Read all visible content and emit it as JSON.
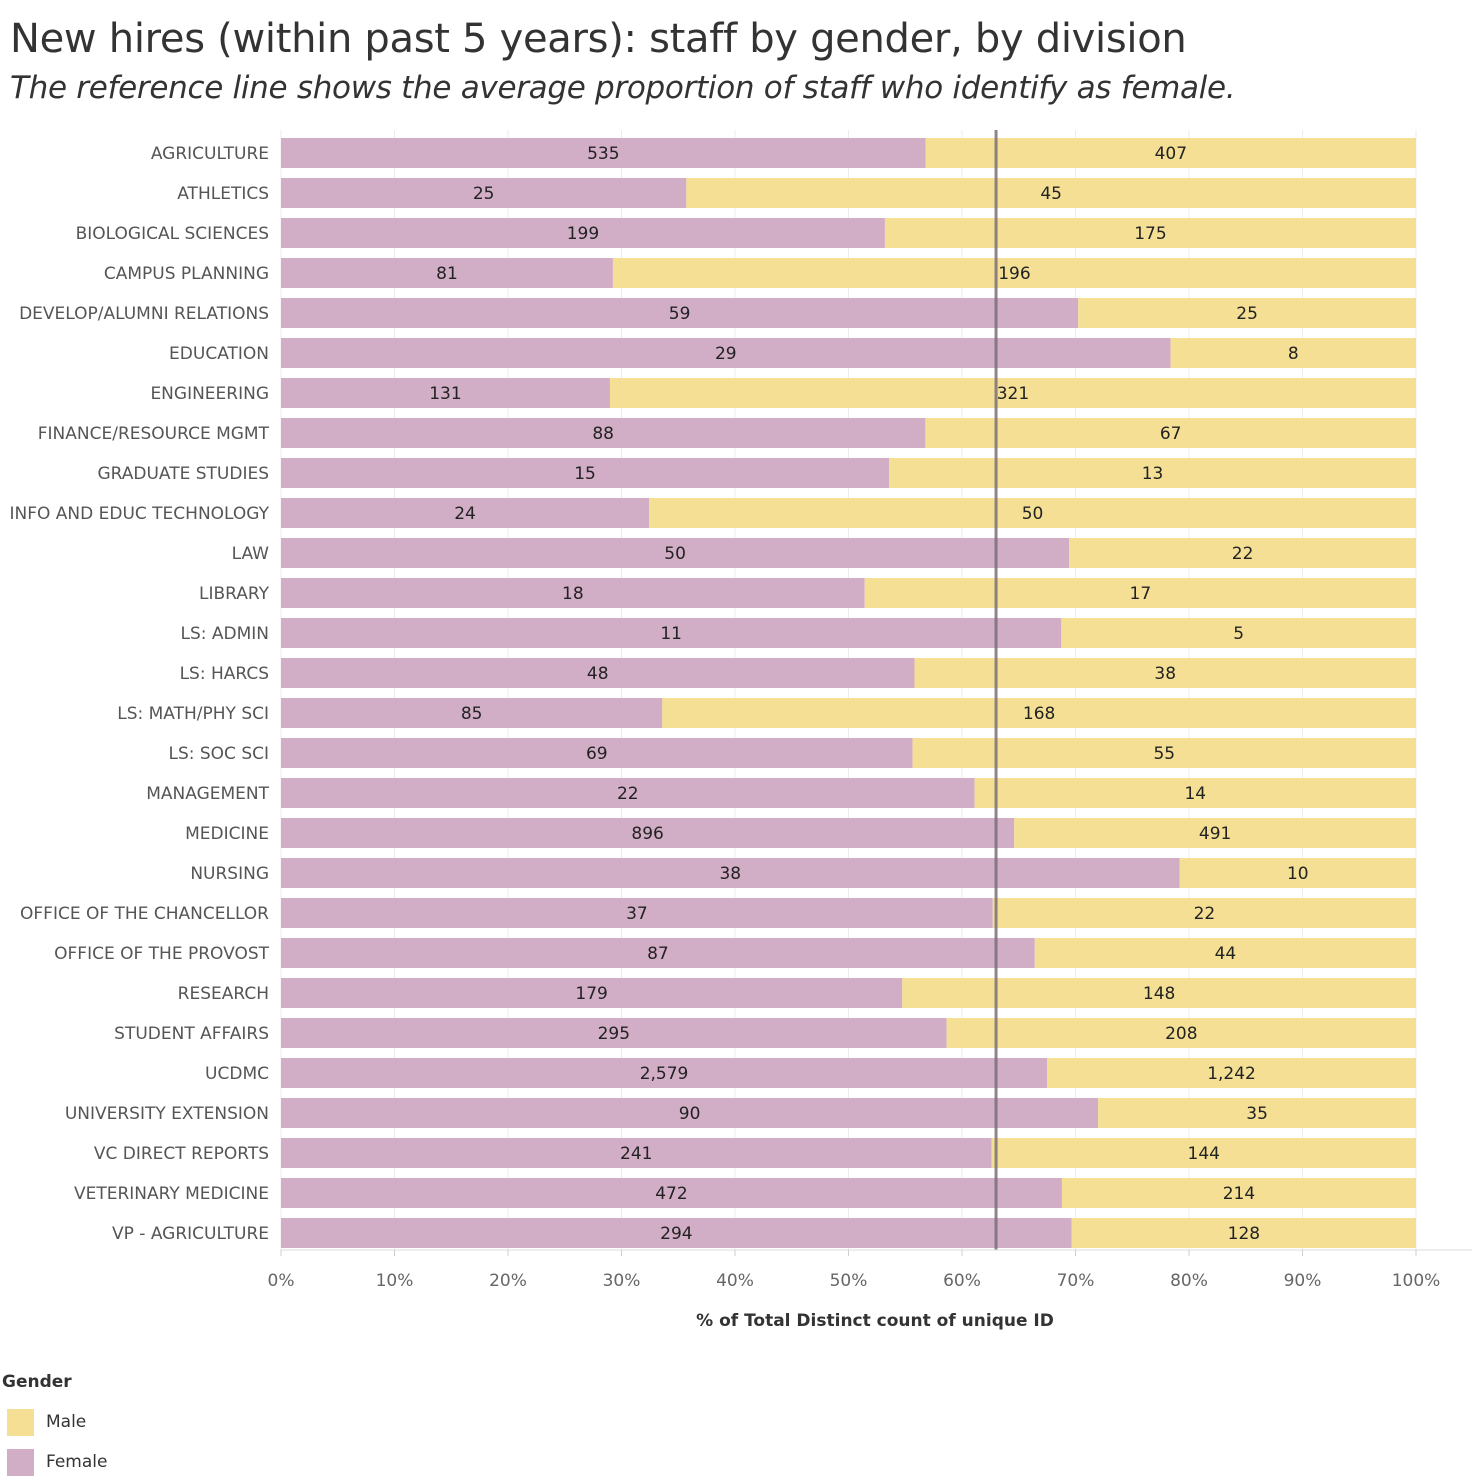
{
  "chart_data": {
    "type": "bar",
    "orientation": "horizontal",
    "stacked": "percent",
    "title": "New hires (within past 5 years): staff by gender, by division",
    "subtitle": "The reference line shows the average proportion of staff who identify as female.",
    "xlabel": "% of Total Distinct count of unique ID",
    "ylabel": "",
    "xlim": [
      0,
      100
    ],
    "x_ticks": [
      "0%",
      "10%",
      "20%",
      "30%",
      "40%",
      "50%",
      "60%",
      "70%",
      "80%",
      "90%",
      "100%"
    ],
    "reference_line": {
      "value": 63,
      "description": "average proportion of staff who identify as female"
    },
    "categories": [
      "AGRICULTURE",
      "ATHLETICS",
      "BIOLOGICAL SCIENCES",
      "CAMPUS PLANNING",
      "DEVELOP/ALUMNI RELATIONS",
      "EDUCATION",
      "ENGINEERING",
      "FINANCE/RESOURCE MGMT",
      "GRADUATE STUDIES",
      "INFO AND EDUC TECHNOLOGY",
      "LAW",
      "LIBRARY",
      "LS: ADMIN",
      "LS: HARCS",
      "LS: MATH/PHY SCI",
      "LS: SOC SCI",
      "MANAGEMENT",
      "MEDICINE",
      "NURSING",
      "OFFICE OF THE CHANCELLOR",
      "OFFICE OF THE PROVOST",
      "RESEARCH",
      "STUDENT AFFAIRS",
      "UCDMC",
      "UNIVERSITY EXTENSION",
      "VC DIRECT REPORTS",
      "VETERINARY MEDICINE",
      "VP - AGRICULTURE"
    ],
    "series": [
      {
        "name": "Female",
        "color": "#d1adc6",
        "values": [
          535,
          25,
          199,
          81,
          59,
          29,
          131,
          88,
          15,
          24,
          50,
          18,
          11,
          48,
          85,
          69,
          22,
          896,
          38,
          37,
          87,
          179,
          295,
          2579,
          90,
          241,
          472,
          294
        ],
        "labels": [
          "535",
          "25",
          "199",
          "81",
          "59",
          "29",
          "131",
          "88",
          "15",
          "24",
          "50",
          "18",
          "11",
          "48",
          "85",
          "69",
          "22",
          "896",
          "38",
          "37",
          "87",
          "179",
          "295",
          "2,579",
          "90",
          "241",
          "472",
          "294"
        ]
      },
      {
        "name": "Male",
        "color": "#f4df94",
        "values": [
          407,
          45,
          175,
          196,
          25,
          8,
          321,
          67,
          13,
          50,
          22,
          17,
          5,
          38,
          168,
          55,
          14,
          491,
          10,
          22,
          44,
          148,
          208,
          1242,
          35,
          144,
          214,
          128
        ],
        "labels": [
          "407",
          "45",
          "175",
          "196",
          "25",
          "8",
          "321",
          "67",
          "13",
          "50",
          "22",
          "17",
          "5",
          "38",
          "168",
          "55",
          "14",
          "491",
          "10",
          "22",
          "44",
          "148",
          "208",
          "1,242",
          "35",
          "144",
          "214",
          "128"
        ]
      }
    ],
    "legend": {
      "title": "Gender",
      "position": "bottom-left",
      "items": [
        {
          "label": "Male",
          "color": "#f4df94"
        },
        {
          "label": "Female",
          "color": "#d1adc6"
        }
      ]
    }
  }
}
